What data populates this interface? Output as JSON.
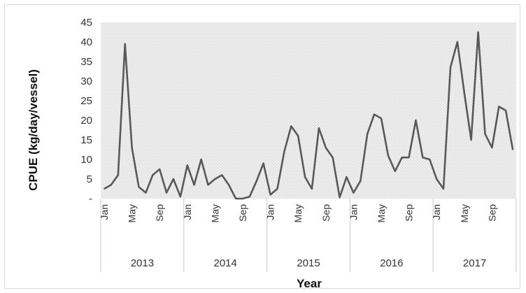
{
  "chart_data": {
    "type": "line",
    "title": "",
    "xlabel": "Year",
    "ylabel": "CPUE (kg/day/vessel)",
    "ylim": [
      0,
      45
    ],
    "y_ticks": [
      "-",
      "5",
      "10",
      "15",
      "20",
      "25",
      "30",
      "35",
      "40",
      "45"
    ],
    "y_tick_values": [
      0,
      5,
      10,
      15,
      20,
      25,
      30,
      35,
      40,
      45
    ],
    "years": [
      "2013",
      "2014",
      "2015",
      "2016",
      "2017"
    ],
    "month_tick_labels": [
      "Jan",
      "May",
      "Sep"
    ],
    "month_tick_indices": [
      0,
      4,
      8
    ],
    "grid": false,
    "legend": "none",
    "plot_background": "#ececec",
    "line_color": "#595959",
    "series": [
      {
        "values": [
          2.5,
          3.5,
          6,
          39.5,
          13,
          3,
          1.5,
          6,
          7.5,
          1.5,
          5,
          0.5,
          8.5,
          3.5,
          10,
          3.5,
          5,
          6,
          3.5,
          0,
          0,
          0.5,
          4.5,
          9,
          1,
          2.5,
          12,
          18.5,
          16,
          5.5,
          2.5,
          18,
          13,
          10.5,
          0.3,
          5.5,
          1.5,
          4.5,
          16.5,
          21.5,
          20.5,
          11,
          7,
          10.5,
          10.5,
          20,
          10.5,
          10,
          5,
          2.5,
          33.5,
          40,
          27,
          15,
          42.5,
          16.5,
          13,
          23.5,
          22.5,
          12.5
        ]
      }
    ]
  }
}
